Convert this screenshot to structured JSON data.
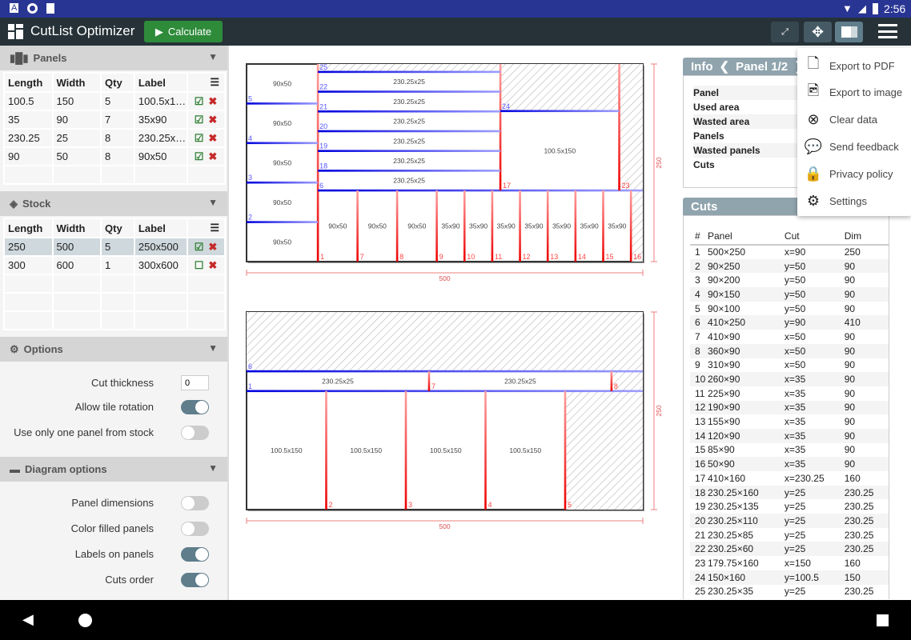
{
  "status": {
    "time": "2:56",
    "left_icons": [
      "a-icon",
      "circle-icon",
      "sd-icon"
    ]
  },
  "appbar": {
    "title": "CutList Optimizer",
    "calculate": "Calculate"
  },
  "panels": {
    "title": "Panels",
    "headers": [
      "Length",
      "Width",
      "Qty",
      "Label"
    ],
    "rows": [
      [
        "100.5",
        "150",
        "5",
        "100.5x1…",
        true
      ],
      [
        "35",
        "90",
        "7",
        "35x90",
        true
      ],
      [
        "230.25",
        "25",
        "8",
        "230.25x…",
        true
      ],
      [
        "90",
        "50",
        "8",
        "90x50",
        true
      ]
    ]
  },
  "stock": {
    "title": "Stock",
    "headers": [
      "Length",
      "Width",
      "Qty",
      "Label"
    ],
    "rows": [
      [
        "250",
        "500",
        "5",
        "250x500",
        true
      ],
      [
        "300",
        "600",
        "1",
        "300x600",
        false
      ]
    ]
  },
  "options": {
    "title": "Options",
    "cut_thickness_label": "Cut thickness",
    "cut_thickness": "0",
    "allow_rotation": "Allow tile rotation",
    "allow_rotation_on": true,
    "one_panel": "Use only one panel from stock",
    "one_panel_on": false
  },
  "diagram_options": {
    "title": "Diagram options",
    "items": [
      {
        "label": "Panel dimensions",
        "on": false
      },
      {
        "label": "Color filled panels",
        "on": false
      },
      {
        "label": "Labels on panels",
        "on": true
      },
      {
        "label": "Cuts order",
        "on": true
      }
    ]
  },
  "info": {
    "title": "Info",
    "panel_nav": "Panel 1/2",
    "labels": [
      "Panel",
      "Used area",
      "Wasted area",
      "Panels",
      "Wasted panels",
      "Cuts"
    ]
  },
  "cuts": {
    "title": "Cuts",
    "headers": [
      "#",
      "Panel",
      "Cut",
      "Dim"
    ],
    "rows": [
      [
        "1",
        "500×250",
        "x=90",
        "250"
      ],
      [
        "2",
        "90×250",
        "y=50",
        "90"
      ],
      [
        "3",
        "90×200",
        "y=50",
        "90"
      ],
      [
        "4",
        "90×150",
        "y=50",
        "90"
      ],
      [
        "5",
        "90×100",
        "y=50",
        "90"
      ],
      [
        "6",
        "410×250",
        "y=90",
        "410"
      ],
      [
        "7",
        "410×90",
        "x=50",
        "90"
      ],
      [
        "8",
        "360×90",
        "x=50",
        "90"
      ],
      [
        "9",
        "310×90",
        "x=50",
        "90"
      ],
      [
        "10",
        "260×90",
        "x=35",
        "90"
      ],
      [
        "11",
        "225×90",
        "x=35",
        "90"
      ],
      [
        "12",
        "190×90",
        "x=35",
        "90"
      ],
      [
        "13",
        "155×90",
        "x=35",
        "90"
      ],
      [
        "14",
        "120×90",
        "x=35",
        "90"
      ],
      [
        "15",
        "85×90",
        "x=35",
        "90"
      ],
      [
        "16",
        "50×90",
        "x=35",
        "90"
      ],
      [
        "17",
        "410×160",
        "x=230.25",
        "160"
      ],
      [
        "18",
        "230.25×160",
        "y=25",
        "230.25"
      ],
      [
        "19",
        "230.25×135",
        "y=25",
        "230.25"
      ],
      [
        "20",
        "230.25×110",
        "y=25",
        "230.25"
      ],
      [
        "21",
        "230.25×85",
        "y=25",
        "230.25"
      ],
      [
        "22",
        "230.25×60",
        "y=25",
        "230.25"
      ],
      [
        "23",
        "179.75×160",
        "x=150",
        "160"
      ],
      [
        "24",
        "150×160",
        "y=100.5",
        "150"
      ],
      [
        "25",
        "230.25×35",
        "y=25",
        "230.25"
      ]
    ]
  },
  "menu": [
    {
      "label": "Export to PDF",
      "icon": "file-icon"
    },
    {
      "label": "Export to image",
      "icon": "image-icon"
    },
    {
      "label": "Clear data",
      "icon": "clear-icon"
    },
    {
      "label": "Send feedback",
      "icon": "feedback-icon"
    },
    {
      "label": "Privacy policy",
      "icon": "lock-icon"
    },
    {
      "label": "Settings",
      "icon": "gear-icon"
    }
  ],
  "colors": {
    "accent": "#2e8b3a",
    "appbar": "#263238",
    "h_cut": "#0000dd",
    "v_cut": "#ee0000",
    "toggle_on": "#5f7d8b"
  },
  "diagrams": [
    {
      "length": 500,
      "width": 250,
      "length_label": "500",
      "width_label": "250",
      "panels": [
        [
          0,
          0,
          90,
          50,
          "90x50"
        ],
        [
          0,
          50,
          90,
          50,
          "90x50"
        ],
        [
          0,
          100,
          90,
          50,
          "90x50"
        ],
        [
          0,
          150,
          90,
          50,
          "90x50"
        ],
        [
          0,
          200,
          90,
          50,
          "90x50"
        ],
        [
          90,
          10,
          230.25,
          25,
          "230.25x25"
        ],
        [
          90,
          35,
          230.25,
          25,
          "230.25x25"
        ],
        [
          90,
          60,
          230.25,
          25,
          "230.25x25"
        ],
        [
          90,
          85,
          230.25,
          25,
          "230.25x25"
        ],
        [
          90,
          110,
          230.25,
          25,
          "230.25x25"
        ],
        [
          90,
          135,
          230.25,
          25,
          "230.25x25"
        ],
        [
          320.25,
          59.5,
          150,
          100.5,
          "100.5x150"
        ],
        [
          90,
          160,
          50,
          90,
          "90x50"
        ],
        [
          140,
          160,
          50,
          90,
          "90x50"
        ],
        [
          190,
          160,
          50,
          90,
          "90x50"
        ],
        [
          240,
          160,
          35,
          90,
          "35x90"
        ],
        [
          275,
          160,
          35,
          90,
          "35x90"
        ],
        [
          310,
          160,
          35,
          90,
          "35x90"
        ],
        [
          345,
          160,
          35,
          90,
          "35x90"
        ],
        [
          380,
          160,
          35,
          90,
          "35x90"
        ],
        [
          415,
          160,
          35,
          90,
          "35x90"
        ],
        [
          450,
          160,
          35,
          90,
          "35x90"
        ]
      ],
      "waste": [
        [
          90,
          0,
          230.25,
          10
        ],
        [
          320.25,
          0,
          150,
          59.5
        ],
        [
          470.25,
          0,
          29.75,
          160
        ],
        [
          485,
          160,
          15,
          90
        ]
      ],
      "cuts": [
        [
          "1",
          "v",
          90,
          0,
          250
        ],
        [
          "2",
          "h",
          200,
          0,
          90
        ],
        [
          "3",
          "h",
          150,
          0,
          90
        ],
        [
          "4",
          "h",
          100,
          0,
          90
        ],
        [
          "5",
          "h",
          50,
          0,
          90
        ],
        [
          "6",
          "h",
          160,
          90,
          500
        ],
        [
          "7",
          "v",
          140,
          160,
          250
        ],
        [
          "8",
          "v",
          190,
          160,
          250
        ],
        [
          "9",
          "v",
          240,
          160,
          250
        ],
        [
          "10",
          "v",
          275,
          160,
          250
        ],
        [
          "11",
          "v",
          310,
          160,
          250
        ],
        [
          "12",
          "v",
          345,
          160,
          250
        ],
        [
          "13",
          "v",
          380,
          160,
          250
        ],
        [
          "14",
          "v",
          415,
          160,
          250
        ],
        [
          "15",
          "v",
          450,
          160,
          250
        ],
        [
          "16",
          "v",
          485,
          160,
          250
        ],
        [
          "17",
          "v",
          320.25,
          0,
          160
        ],
        [
          "18",
          "h",
          135,
          90,
          320.25
        ],
        [
          "19",
          "h",
          110,
          90,
          320.25
        ],
        [
          "20",
          "h",
          85,
          90,
          320.25
        ],
        [
          "21",
          "h",
          60,
          90,
          320.25
        ],
        [
          "22",
          "h",
          35,
          90,
          320.25
        ],
        [
          "23",
          "v",
          470.25,
          0,
          160
        ],
        [
          "24",
          "h",
          59.5,
          320.25,
          470.25
        ],
        [
          "25",
          "h",
          10,
          90,
          320.25
        ]
      ]
    },
    {
      "length": 500,
      "width": 250,
      "length_label": "500",
      "width_label": "250",
      "panels": [
        [
          0,
          75,
          230.25,
          25,
          "230.25x25"
        ],
        [
          230.25,
          75,
          230.25,
          25,
          "230.25x25"
        ],
        [
          0,
          100,
          100.5,
          150,
          "100.5x150"
        ],
        [
          100.5,
          100,
          100.5,
          150,
          "100.5x150"
        ],
        [
          201,
          100,
          100.5,
          150,
          "100.5x150"
        ],
        [
          301.5,
          100,
          100.5,
          150,
          "100.5x150"
        ]
      ],
      "waste": [
        [
          0,
          0,
          500,
          75
        ],
        [
          460.5,
          75,
          39.5,
          25
        ],
        [
          402,
          100,
          98,
          150
        ]
      ],
      "cuts": [
        [
          "1",
          "h",
          100,
          0,
          500
        ],
        [
          "2",
          "v",
          100.5,
          100,
          250
        ],
        [
          "3",
          "v",
          201,
          100,
          250
        ],
        [
          "4",
          "v",
          301.5,
          100,
          250
        ],
        [
          "5",
          "v",
          402,
          100,
          250
        ],
        [
          "6",
          "h",
          75,
          0,
          500
        ],
        [
          "7",
          "v",
          230.25,
          75,
          100
        ],
        [
          "8",
          "v",
          460.5,
          75,
          100
        ]
      ]
    }
  ]
}
